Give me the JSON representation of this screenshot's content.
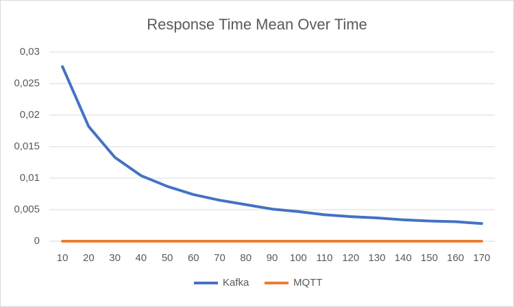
{
  "chart_data": {
    "type": "line",
    "title": "Response Time Mean Over Time",
    "categories": [
      "10",
      "20",
      "30",
      "40",
      "50",
      "60",
      "70",
      "80",
      "90",
      "100",
      "110",
      "120",
      "130",
      "140",
      "150",
      "160",
      "170"
    ],
    "series": [
      {
        "name": "Kafka",
        "color": "#4472c4",
        "values": [
          0.0277,
          0.0182,
          0.0133,
          0.0104,
          0.0087,
          0.0074,
          0.0065,
          0.0058,
          0.0051,
          0.0047,
          0.0042,
          0.0039,
          0.0037,
          0.0034,
          0.0032,
          0.0031,
          0.0028
        ]
      },
      {
        "name": "MQTT",
        "color": "#ed7d31",
        "values": [
          0,
          0,
          0,
          0,
          0,
          0,
          0,
          0,
          0,
          0,
          0,
          0,
          0,
          0,
          0,
          0,
          0
        ]
      }
    ],
    "ylim": [
      0,
      0.03
    ],
    "yticks": [
      0,
      {
        "value": 0.005,
        "label": "0,005"
      },
      {
        "value": 0.01,
        "label": "0,01"
      },
      {
        "value": 0.015,
        "label": "0,015"
      },
      {
        "value": 0.02,
        "label": "0,02"
      },
      {
        "value": 0.025,
        "label": "0,025"
      },
      {
        "value": 0.03,
        "label": "0,03"
      }
    ],
    "grid": true,
    "legend": "bottom"
  }
}
